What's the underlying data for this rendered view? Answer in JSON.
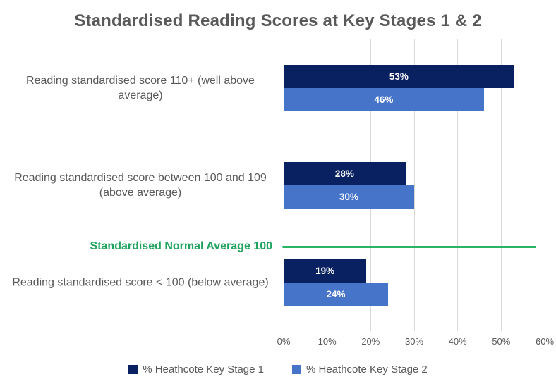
{
  "title": "Standardised Reading Scores at Key Stages 1 & 2",
  "colors": {
    "ks1_navy": "#0a2161",
    "ks2_blue": "#4674c8",
    "reference_green": "#28b463",
    "reference_text_green": "#21a35f",
    "text_gray": "#595959",
    "gridline_gray": "#d9d9d9",
    "bar_label_white": "#ffffff"
  },
  "chart_data": {
    "type": "bar",
    "orientation": "horizontal",
    "title": "Standardised Reading Scores at Key Stages 1 & 2",
    "categories": [
      "Reading standardised score 110+ (well above average)",
      "Reading standardised score between 100 and 109 (above average)",
      "Reading standardised score < 100 (below average)"
    ],
    "series": [
      {
        "name": "% Heathcote Key Stage 1",
        "color": "#0a2161",
        "values": [
          53,
          28,
          19
        ]
      },
      {
        "name": "% Heathcote Key Stage 2",
        "color": "#4674c8",
        "values": [
          46,
          30,
          24
        ]
      }
    ],
    "data_label_format": "{value}%",
    "x_axis": {
      "tick_labels": [
        "0%",
        "10%",
        "20%",
        "30%",
        "40%",
        "50%",
        "60%"
      ],
      "min": 0,
      "max": 60
    },
    "reference_line": {
      "label": "Standardised Normal Average 100",
      "meaning": "Standardised score of 100 (normal average)",
      "color": "#28b463",
      "span_axis_pct": [
        0,
        58
      ]
    },
    "grid": true,
    "legend_position": "bottom",
    "legend": [
      "% Heathcote Key Stage 1",
      "% Heathcote Key Stage 2"
    ]
  }
}
